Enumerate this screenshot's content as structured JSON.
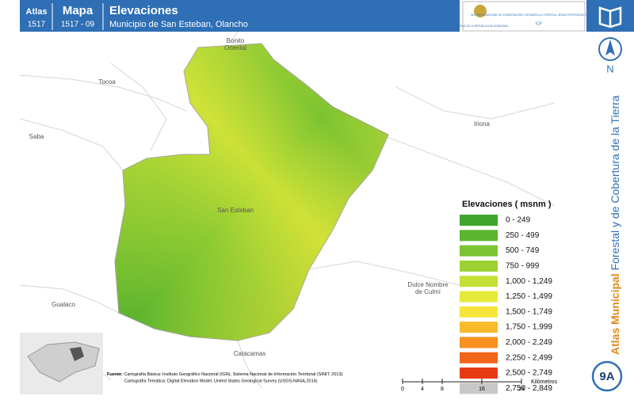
{
  "header": {
    "atlas_label": "Atlas",
    "atlas_number": "1517",
    "map_label": "Mapa",
    "map_number": "1517 - 09",
    "title": "Elevaciones",
    "subtitle": "Municipio de San Esteban, Olancho"
  },
  "logos": {
    "government": "GOBIERNO DE LA REPÚBLICA DE HONDURAS",
    "institute": "INSTITUTO NACIONAL DE CONSERVACIÓN Y DESARROLLO FORESTAL, ÁREAS PROTEGIDAS Y VIDA SILVESTRE",
    "institute_short": "ICF"
  },
  "side": {
    "north": "N",
    "series_bold": "Atlas Municipal",
    "series_rest": "Forestal y de Cobertura de la Tierra",
    "badge": "9A"
  },
  "places": [
    "Bonito Oriental",
    "Tocoa",
    "Saba",
    "Iriona",
    "San Esteban",
    "Dulce Nombre de Culmí",
    "Gualaco",
    "Catacamas"
  ],
  "legend": {
    "title": "Elevaciones ( msnm )",
    "items": [
      {
        "label": "0 - 249",
        "color": "#3ea62b"
      },
      {
        "label": "250 - 499",
        "color": "#5cb52e"
      },
      {
        "label": "500 - 749",
        "color": "#7cc331"
      },
      {
        "label": "750 - 999",
        "color": "#9ed233"
      },
      {
        "label": "1,000 - 1,249",
        "color": "#c4e037"
      },
      {
        "label": "1,250 - 1,499",
        "color": "#e6ea3b"
      },
      {
        "label": "1,500 - 1,749",
        "color": "#f7e43a"
      },
      {
        "label": "1,750 - 1,999",
        "color": "#f9bb2b"
      },
      {
        "label": "2,000 - 2,249",
        "color": "#f7901f"
      },
      {
        "label": "2,250 - 2,499",
        "color": "#f06518"
      },
      {
        "label": "2,500 - 2,749",
        "color": "#e73a14"
      },
      {
        "label": "2,750 - 2,849",
        "color": "#c8c8c8"
      }
    ]
  },
  "scale": {
    "ticks": [
      0,
      4,
      8,
      16,
      24
    ],
    "unit": "Kilómetros"
  },
  "source": {
    "label": "Fuente:",
    "line1": "Cartografía Básica: Instituto Geográfico Nacional (IGN), Sistema Nacional de Información Territorial (SINIT, 2013)",
    "line2": "Cartografía Temática: Digital Elevation Model, United States Geological Survey (USGS-NASA,2014)"
  }
}
